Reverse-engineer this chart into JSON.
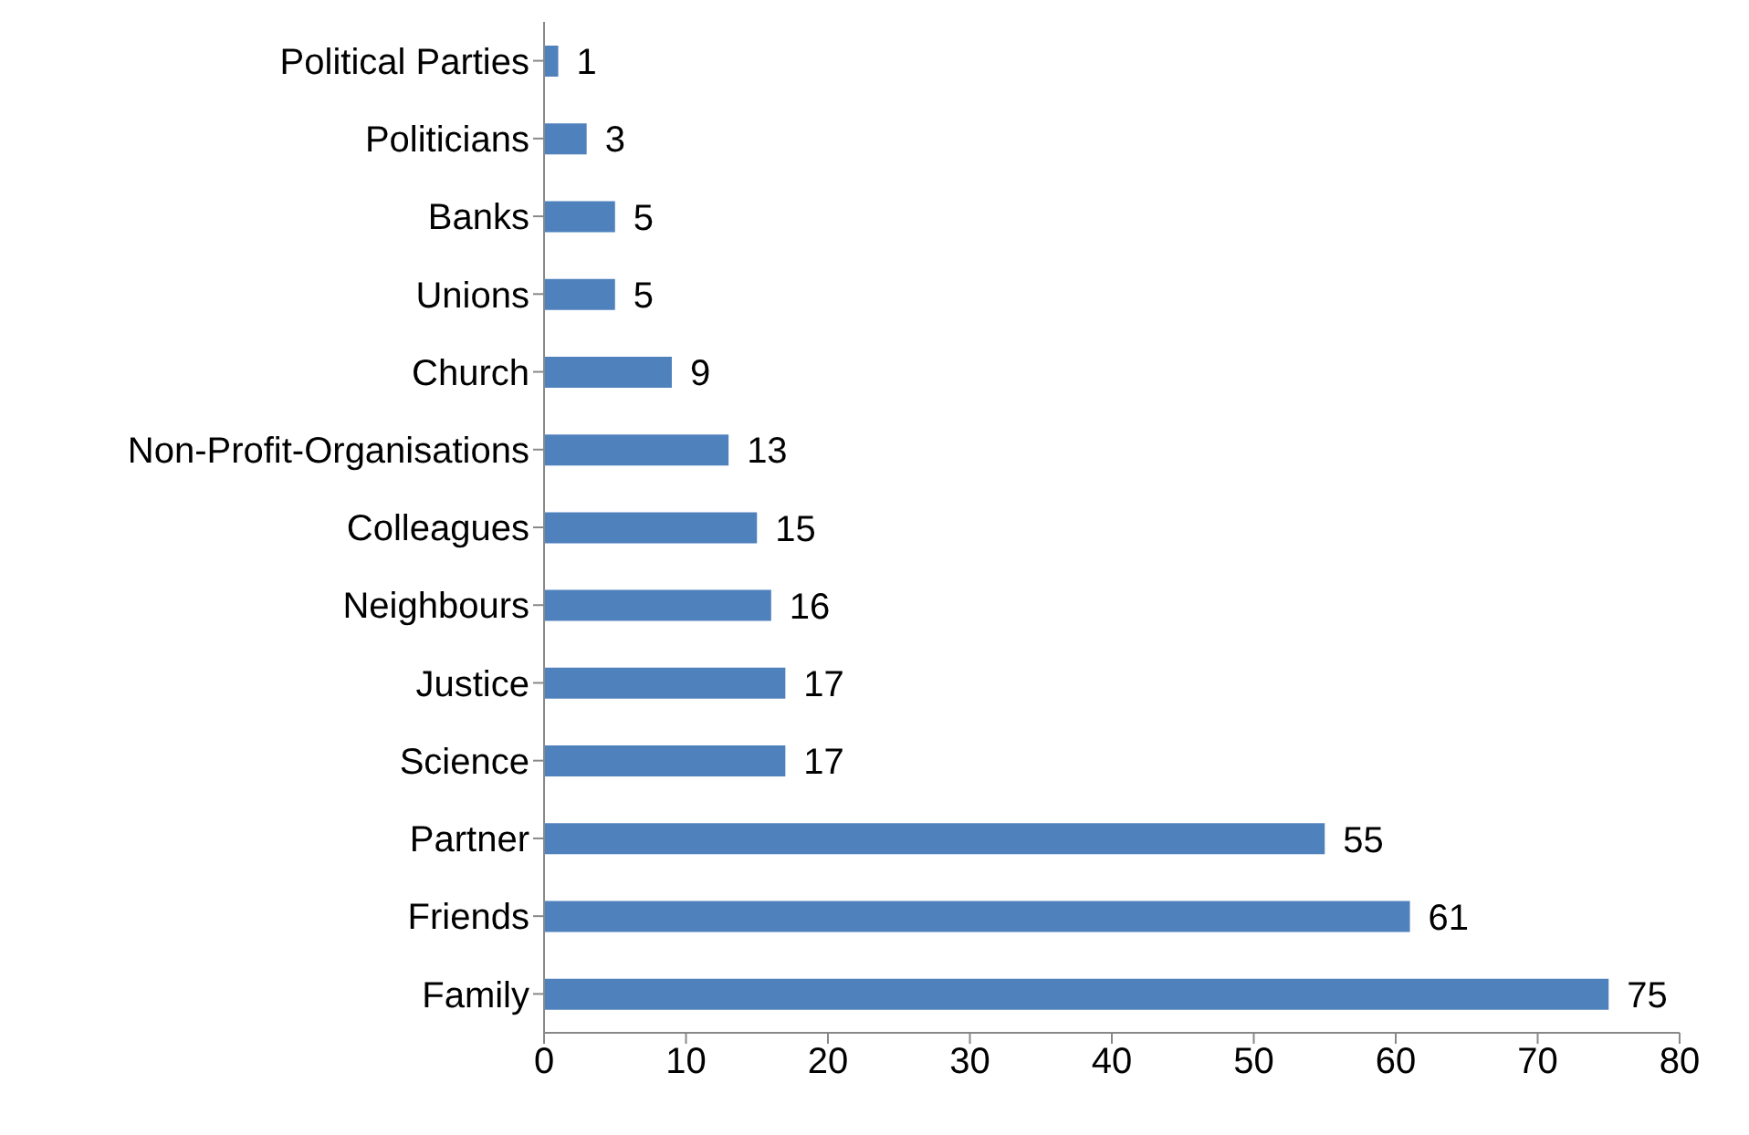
{
  "chart_data": {
    "type": "bar",
    "orientation": "horizontal",
    "categories": [
      "Political Parties",
      "Politicians",
      "Banks",
      "Unions",
      "Church",
      "Non-Profit-Organisations",
      "Colleagues",
      "Neighbours",
      "Justice",
      "Science",
      "Partner",
      "Friends",
      "Family"
    ],
    "values": [
      1,
      3,
      5,
      5,
      9,
      13,
      15,
      16,
      17,
      17,
      55,
      61,
      75
    ],
    "color": "#4f81bd",
    "xlim": [
      0,
      80
    ],
    "xticks": [
      0,
      10,
      20,
      30,
      40,
      50,
      60,
      70,
      80
    ],
    "data_labels": true
  }
}
